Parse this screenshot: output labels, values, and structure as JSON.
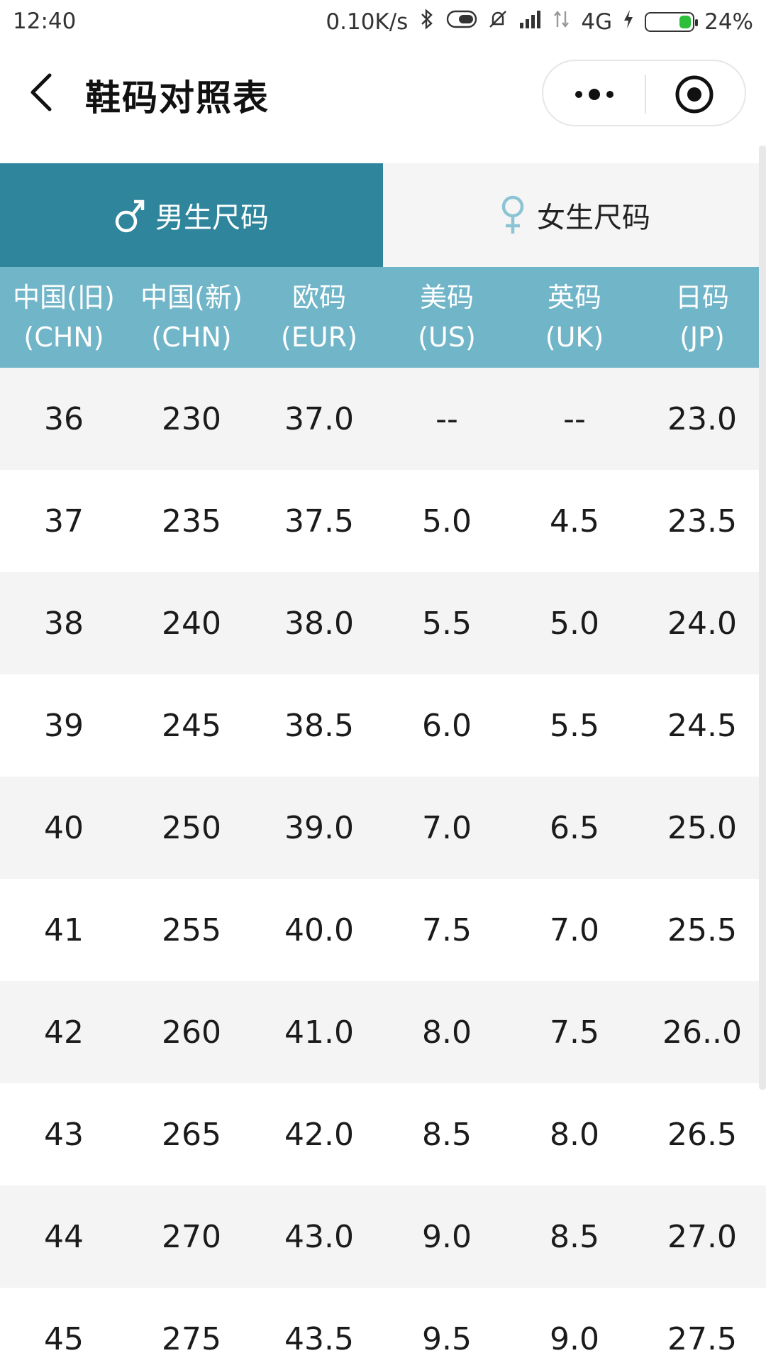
{
  "status_bar": {
    "time": "12:40",
    "net_speed": "0.10K/s",
    "network": "4G",
    "battery": "24%",
    "battery_level": 0.24,
    "icons": [
      "bluetooth-icon",
      "toggle-icon",
      "mute-bell-icon",
      "signal-icon",
      "signal-icon",
      "charging-icon"
    ]
  },
  "navbar": {
    "title": "鞋码对照表"
  },
  "tabs": [
    {
      "label": "男生尺码",
      "icon": "male-icon",
      "active": true
    },
    {
      "label": "女生尺码",
      "icon": "female-icon",
      "active": false
    }
  ],
  "colors": {
    "tab_active": "#2e859c",
    "header": "#71b5c9"
  },
  "table": {
    "headers": [
      {
        "name": "中国(旧)",
        "code": "(CHN)"
      },
      {
        "name": "中国(新)",
        "code": "(CHN)"
      },
      {
        "name": "欧码",
        "code": "(EUR)"
      },
      {
        "name": "美码",
        "code": "(US)"
      },
      {
        "name": "英码",
        "code": "(UK)"
      },
      {
        "name": "日码",
        "code": "(JP)"
      }
    ],
    "rows": [
      [
        "36",
        "230",
        "37.0",
        "--",
        "--",
        "23.0"
      ],
      [
        "37",
        "235",
        "37.5",
        "5.0",
        "4.5",
        "23.5"
      ],
      [
        "38",
        "240",
        "38.0",
        "5.5",
        "5.0",
        "24.0"
      ],
      [
        "39",
        "245",
        "38.5",
        "6.0",
        "5.5",
        "24.5"
      ],
      [
        "40",
        "250",
        "39.0",
        "7.0",
        "6.5",
        "25.0"
      ],
      [
        "41",
        "255",
        "40.0",
        "7.5",
        "7.0",
        "25.5"
      ],
      [
        "42",
        "260",
        "41.0",
        "8.0",
        "7.5",
        "26..0"
      ],
      [
        "43",
        "265",
        "42.0",
        "8.5",
        "8.0",
        "26.5"
      ],
      [
        "44",
        "270",
        "43.0",
        "9.0",
        "8.5",
        "27.0"
      ],
      [
        "45",
        "275",
        "43.5",
        "9.5",
        "9.0",
        "27.5"
      ]
    ]
  }
}
